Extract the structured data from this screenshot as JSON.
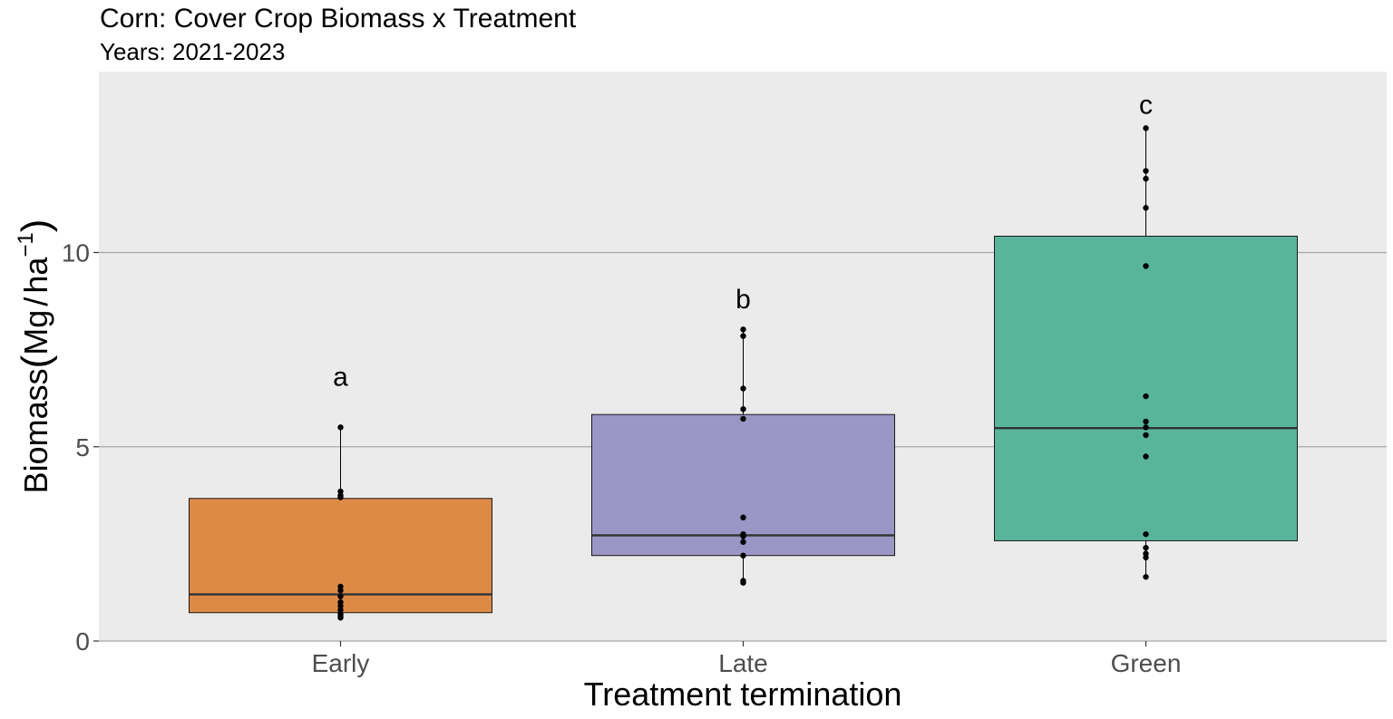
{
  "chart_data": {
    "type": "box",
    "title": "Corn: Cover Crop Biomass x Treatment",
    "subtitle": "Years: 2021-2023",
    "xlabel": "Treatment termination",
    "ylabel": {
      "main": "Biomass",
      "unit_base": "Mg",
      "unit_per": "ha",
      "unit_exp": "−1"
    },
    "ylim": [
      0,
      14.6
    ],
    "yticks": [
      0,
      5,
      10
    ],
    "grid": "horizontal",
    "legend": "none",
    "categories": [
      "Early",
      "Late",
      "Green"
    ],
    "colors": [
      "#DE8A47",
      "#9A96C6",
      "#59B59A"
    ],
    "groups": [
      {
        "category": "Early",
        "q1": 0.73,
        "median": 1.2,
        "q3": 3.67,
        "whisker_low": 0.58,
        "whisker_high": 5.5,
        "letter": "a",
        "letter_y": 6.8,
        "points": [
          5.5,
          3.85,
          3.75,
          3.7,
          1.4,
          1.3,
          1.15,
          1.0,
          0.9,
          0.8,
          0.7,
          0.65,
          0.6
        ]
      },
      {
        "category": "Late",
        "q1": 2.2,
        "median": 2.72,
        "q3": 5.83,
        "whisker_low": 1.5,
        "whisker_high": 8.02,
        "letter": "b",
        "letter_y": 8.8,
        "points": [
          8.02,
          7.85,
          6.5,
          5.97,
          5.72,
          3.18,
          2.75,
          2.7,
          2.55,
          2.2,
          1.55,
          1.5
        ]
      },
      {
        "category": "Green",
        "q1": 2.58,
        "median": 5.48,
        "q3": 10.42,
        "whisker_low": 1.65,
        "whisker_high": 13.2,
        "letter": "c",
        "letter_y": 13.8,
        "points": [
          13.2,
          12.1,
          11.9,
          11.15,
          9.65,
          6.3,
          5.65,
          5.5,
          5.3,
          4.75,
          2.75,
          2.4,
          2.25,
          2.15,
          1.65
        ]
      }
    ]
  }
}
